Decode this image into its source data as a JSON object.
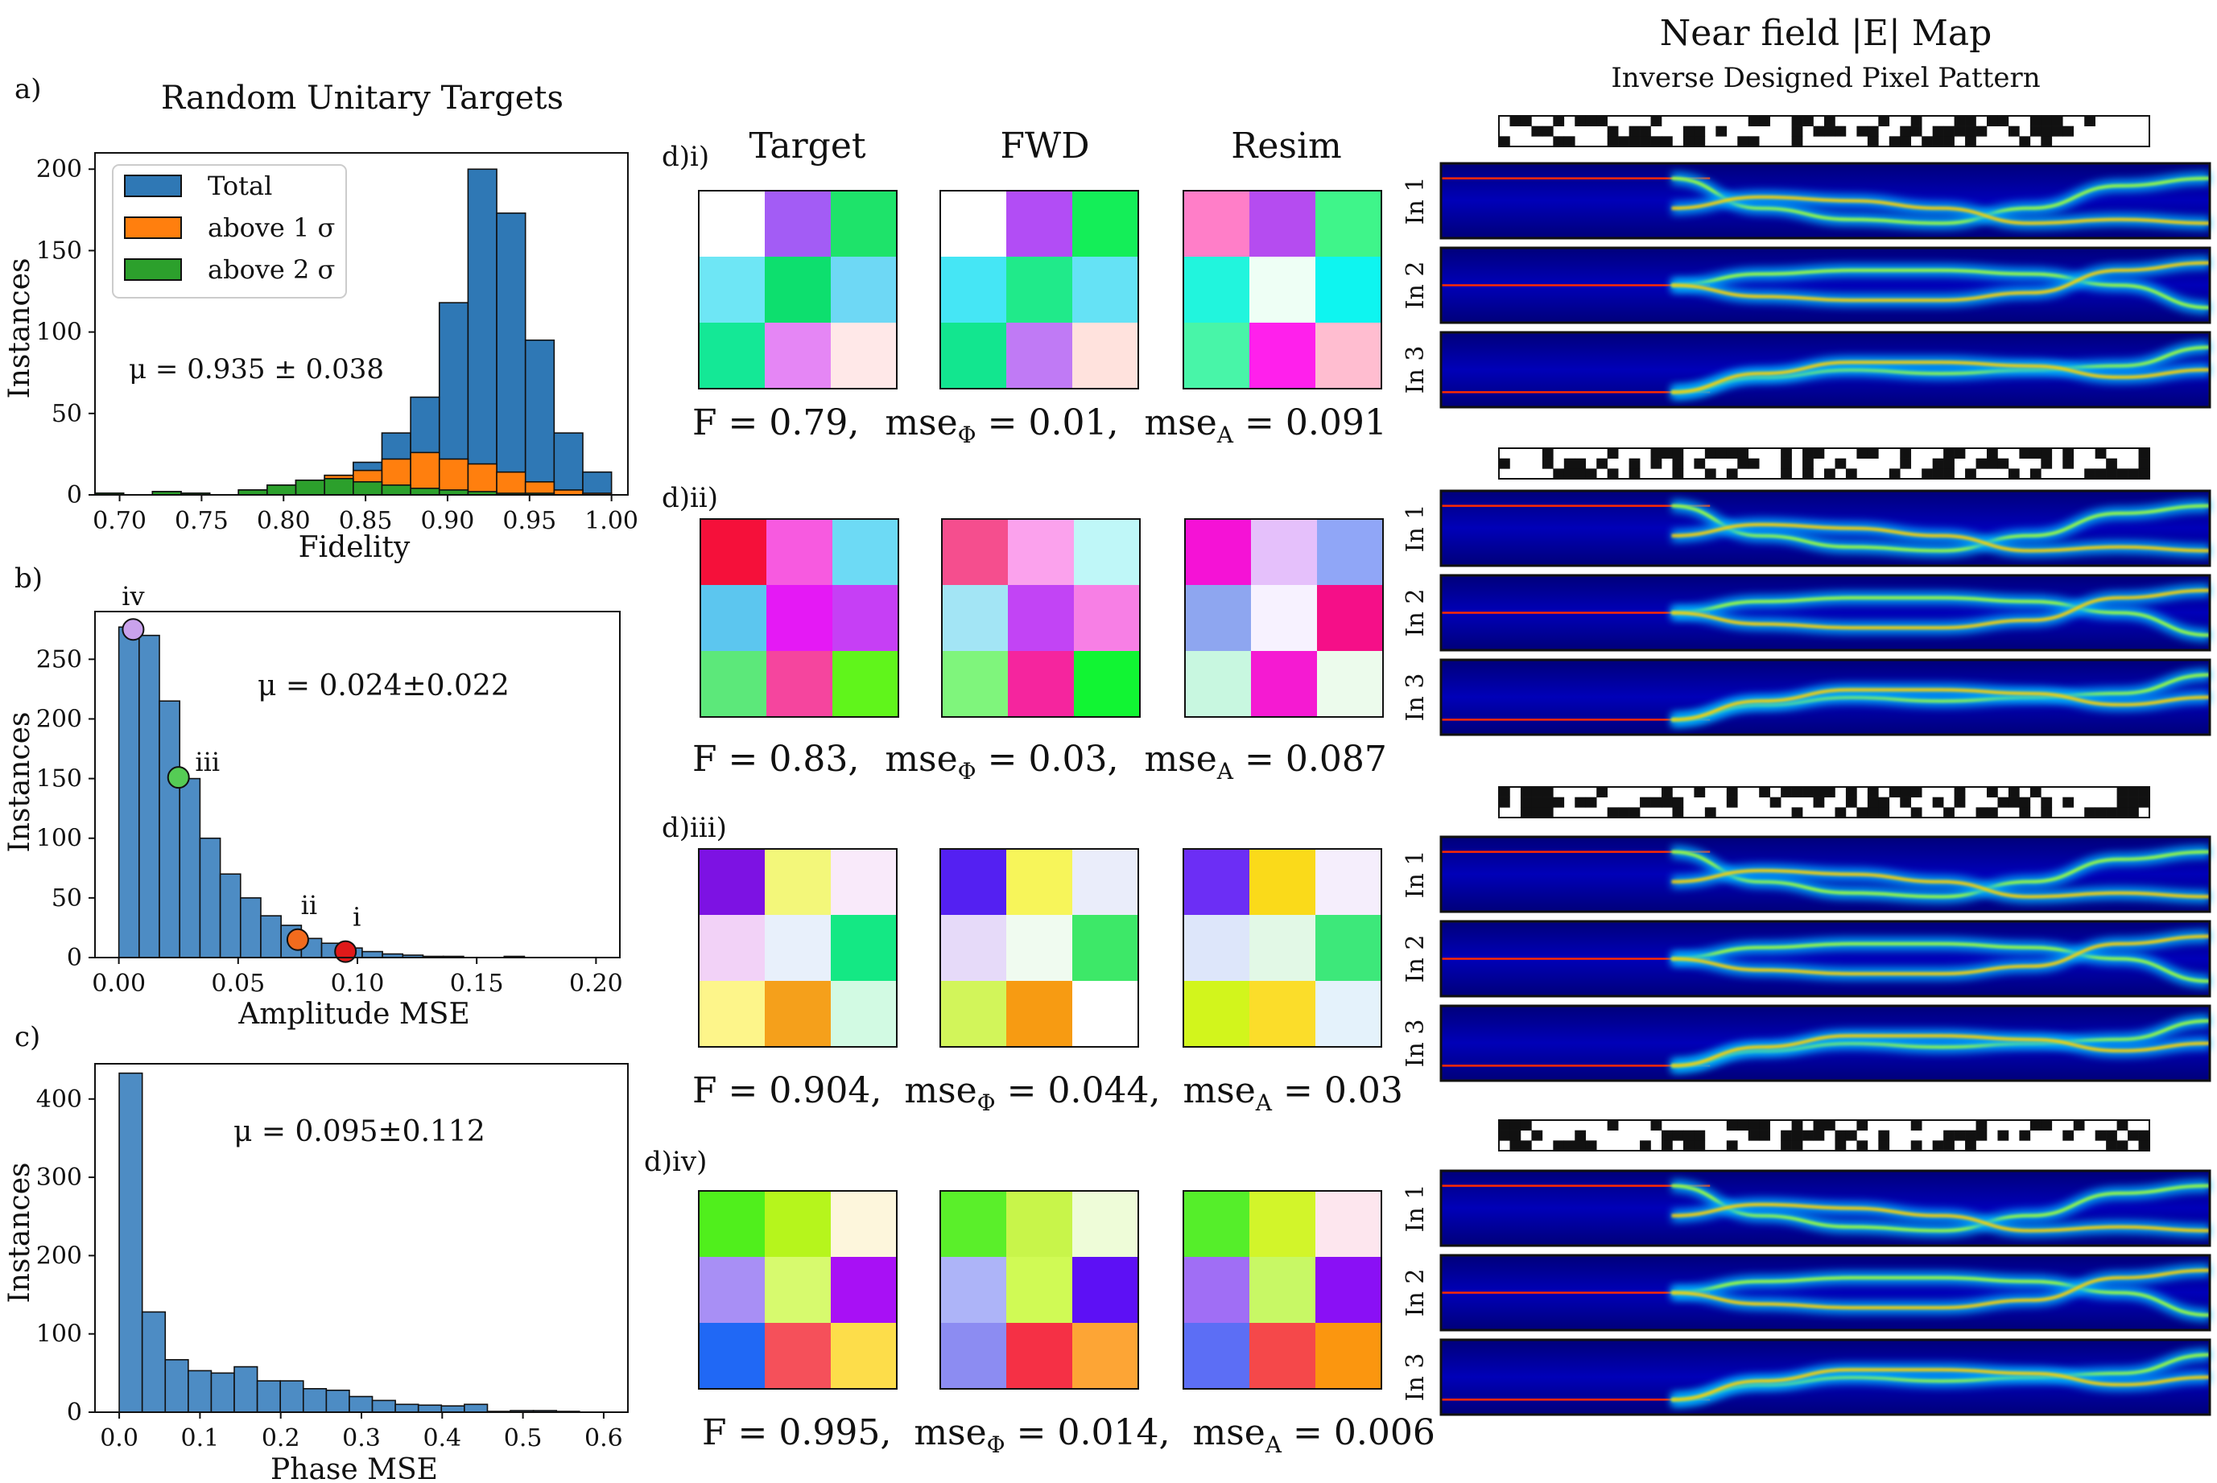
{
  "colors": {
    "total": "#2f78b5",
    "above1": "#ff7f0e",
    "above2": "#2ca02c",
    "hist": "#4d8cc4",
    "point_iv": "#c9a2ec",
    "point_iii": "#55cc55",
    "point_ii": "#f26b1d",
    "point_i": "#e01a1a"
  },
  "chart_data": [
    {
      "id": "a",
      "panel_label": "a)",
      "type": "bar",
      "title": "Random Unitary Targets",
      "xlabel": "Fidelity",
      "ylabel": "Instances",
      "xlim": [
        0.685,
        1.01
      ],
      "ylim": [
        0,
        210
      ],
      "xticks": [
        0.7,
        0.75,
        0.8,
        0.85,
        0.9,
        0.95,
        1.0
      ],
      "xtick_labels": [
        "0.70",
        "0.75",
        "0.80",
        "0.85",
        "0.90",
        "0.95",
        "1.00"
      ],
      "yticks": [
        0,
        50,
        100,
        150,
        200
      ],
      "ytick_labels": [
        "0",
        "50",
        "100",
        "150",
        "200"
      ],
      "bin_edges": [
        0.685,
        0.7025,
        0.72,
        0.7375,
        0.755,
        0.7725,
        0.79,
        0.8075,
        0.825,
        0.8425,
        0.86,
        0.8775,
        0.895,
        0.9125,
        0.93,
        0.9475,
        0.965,
        0.9825,
        1.0
      ],
      "series": [
        {
          "name": "Total",
          "values": [
            1,
            0,
            2,
            1,
            0,
            3,
            6,
            9,
            12,
            20,
            38,
            60,
            118,
            200,
            173,
            95,
            38,
            14
          ]
        },
        {
          "name": "above 1 σ",
          "values": [
            1,
            0,
            2,
            1,
            0,
            3,
            6,
            9,
            12,
            15,
            22,
            26,
            22,
            19,
            14,
            8,
            3,
            1
          ]
        },
        {
          "name": "above 2 σ",
          "values": [
            1,
            0,
            2,
            1,
            0,
            3,
            6,
            9,
            10,
            8,
            6,
            4,
            3,
            2,
            1,
            1,
            0,
            0
          ]
        }
      ],
      "legend": {
        "position": "top-left",
        "entries": [
          "Total",
          "above 1 σ",
          "above 2 σ"
        ]
      },
      "annotation": "μ = 0.935 ± 0.038"
    },
    {
      "id": "b",
      "panel_label": "b)",
      "type": "bar",
      "xlabel": "Amplitude MSE",
      "ylabel": "Instances",
      "xlim": [
        -0.01,
        0.21
      ],
      "ylim": [
        0,
        290
      ],
      "xticks": [
        0.0,
        0.05,
        0.1,
        0.15,
        0.2
      ],
      "xtick_labels": [
        "0.00",
        "0.05",
        "0.10",
        "0.15",
        "0.20"
      ],
      "yticks": [
        0,
        50,
        100,
        150,
        200,
        250
      ],
      "ytick_labels": [
        "0",
        "50",
        "100",
        "150",
        "200",
        "250"
      ],
      "bin_edges": [
        0.0,
        0.0085,
        0.017,
        0.0255,
        0.034,
        0.0425,
        0.051,
        0.0595,
        0.068,
        0.0765,
        0.085,
        0.0935,
        0.102,
        0.1105,
        0.119,
        0.1275,
        0.136,
        0.1445,
        0.153,
        0.1615,
        0.17
      ],
      "values": [
        277,
        270,
        215,
        150,
        100,
        70,
        50,
        35,
        27,
        16,
        12,
        8,
        5,
        3,
        2,
        1,
        1,
        0,
        0,
        1
      ],
      "points": [
        {
          "label": "iv",
          "x": 0.006,
          "y": 275
        },
        {
          "label": "iii",
          "x": 0.025,
          "y": 151
        },
        {
          "label": "ii",
          "x": 0.075,
          "y": 15
        },
        {
          "label": "i",
          "x": 0.095,
          "y": 5
        }
      ],
      "annotation": "μ = 0.024±0.022"
    },
    {
      "id": "c",
      "panel_label": "c)",
      "type": "bar",
      "xlabel": "Phase MSE",
      "ylabel": "Instances",
      "xlim": [
        -0.03,
        0.63
      ],
      "ylim": [
        0,
        445
      ],
      "xticks": [
        0.0,
        0.1,
        0.2,
        0.3,
        0.4,
        0.5,
        0.6
      ],
      "xtick_labels": [
        "0.0",
        "0.1",
        "0.2",
        "0.3",
        "0.4",
        "0.5",
        "0.6"
      ],
      "yticks": [
        0,
        100,
        200,
        300,
        400
      ],
      "ytick_labels": [
        "0",
        "100",
        "200",
        "300",
        "400"
      ],
      "bin_edges": [
        0.0,
        0.0285,
        0.057,
        0.0855,
        0.114,
        0.1425,
        0.171,
        0.1995,
        0.228,
        0.2565,
        0.285,
        0.3135,
        0.342,
        0.3705,
        0.399,
        0.4275,
        0.456,
        0.4845,
        0.513,
        0.5415,
        0.57
      ],
      "values": [
        433,
        128,
        67,
        53,
        50,
        58,
        40,
        40,
        30,
        28,
        20,
        15,
        10,
        9,
        8,
        10,
        1,
        2,
        2,
        1
      ],
      "annotation": "μ = 0.095±0.112"
    }
  ],
  "matrices": {
    "column_headers": [
      "Target",
      "FWD",
      "Resim"
    ],
    "rows": [
      {
        "label": "d)i)",
        "fidelity": "F = 0.79,",
        "mse_phase": "0.01,",
        "mse_amp": "0.091",
        "grids": [
          [
            "#ffffff",
            "#a35cf5",
            "#1ee36a",
            "#6ee6f5",
            "#0ddf6e",
            "#6ed8f5",
            "#14e896",
            "#e586f5",
            "#ffe8e8"
          ],
          [
            "#ffffff",
            "#b24df5",
            "#14ee58",
            "#45e6f5",
            "#20ea8a",
            "#65e2f5",
            "#12e68f",
            "#c07af5",
            "#ffe2dd"
          ],
          [
            "#ff7ec8",
            "#b54cf0",
            "#3ff58a",
            "#21f5dd",
            "#eefff5",
            "#0ef5f0",
            "#48f5a8",
            "#ff20ec",
            "#ffbdd0"
          ]
        ]
      },
      {
        "label": "d)ii)",
        "fidelity": "F = 0.83,",
        "mse_phase": "0.03,",
        "mse_amp": "0.087",
        "grids": [
          [
            "#f5103a",
            "#f75ae0",
            "#6ddaf5",
            "#5cc6ef",
            "#e519f5",
            "#c63ff5",
            "#5ce87a",
            "#f5459e",
            "#60f51b"
          ],
          [
            "#f54e8e",
            "#fba2ed",
            "#bff7f8",
            "#a3e5f5",
            "#c244f5",
            "#f77fe5",
            "#7ff57c",
            "#f5259e",
            "#11f533"
          ],
          [
            "#f512d6",
            "#e5c0fb",
            "#90a6f7",
            "#8ea6f0",
            "#f7f2ff",
            "#f50f88",
            "#c8f7e0",
            "#f51ad2",
            "#ecfbec"
          ]
        ]
      },
      {
        "label": "d)iii)",
        "fidelity": "F = 0.904,",
        "mse_phase": "0.044,",
        "mse_amp": "0.03",
        "grids": [
          [
            "#7d12e3",
            "#f3f77a",
            "#f9eafa",
            "#f2d2f7",
            "#e8f0fb",
            "#14e884",
            "#fdf58a",
            "#f5a01b",
            "#d2fae3"
          ],
          [
            "#5420f2",
            "#f7f55a",
            "#eaedfa",
            "#e6daf9",
            "#f0fbf0",
            "#3de868",
            "#d2f55a",
            "#f79b12",
            "#ffffff"
          ],
          [
            "#6c2ef5",
            "#fada1a",
            "#f5eefc",
            "#dde6fa",
            "#e2f8e6",
            "#3de87a",
            "#d2f51c",
            "#fbdd2a",
            "#e4f2fb"
          ]
        ]
      },
      {
        "label": "d)iv)",
        "fidelity": "F = 0.995,",
        "mse_phase": "0.014,",
        "mse_amp": "0.006",
        "grids": [
          [
            "#50ef1c",
            "#b6f51c",
            "#fdf6dc",
            "#a88ff5",
            "#d7fa6e",
            "#a810f5",
            "#2068f5",
            "#f5505a",
            "#fddd4a"
          ],
          [
            "#5aef2a",
            "#c8f54a",
            "#eefcd8",
            "#adb4f8",
            "#d0fa55",
            "#5d10f5",
            "#8c8cf2",
            "#f53045",
            "#fda535"
          ],
          [
            "#55ee2a",
            "#d2f52a",
            "#fde6ee",
            "#a06ef5",
            "#c8f865",
            "#8a10f5",
            "#5c6ef5",
            "#f5484a",
            "#fb960f"
          ]
        ]
      }
    ]
  },
  "nearfield": {
    "title": "Near field |E| Map",
    "subtitle": "Inverse Designed Pixel Pattern",
    "input_labels": [
      "In 1",
      "In 2",
      "In 3"
    ]
  }
}
